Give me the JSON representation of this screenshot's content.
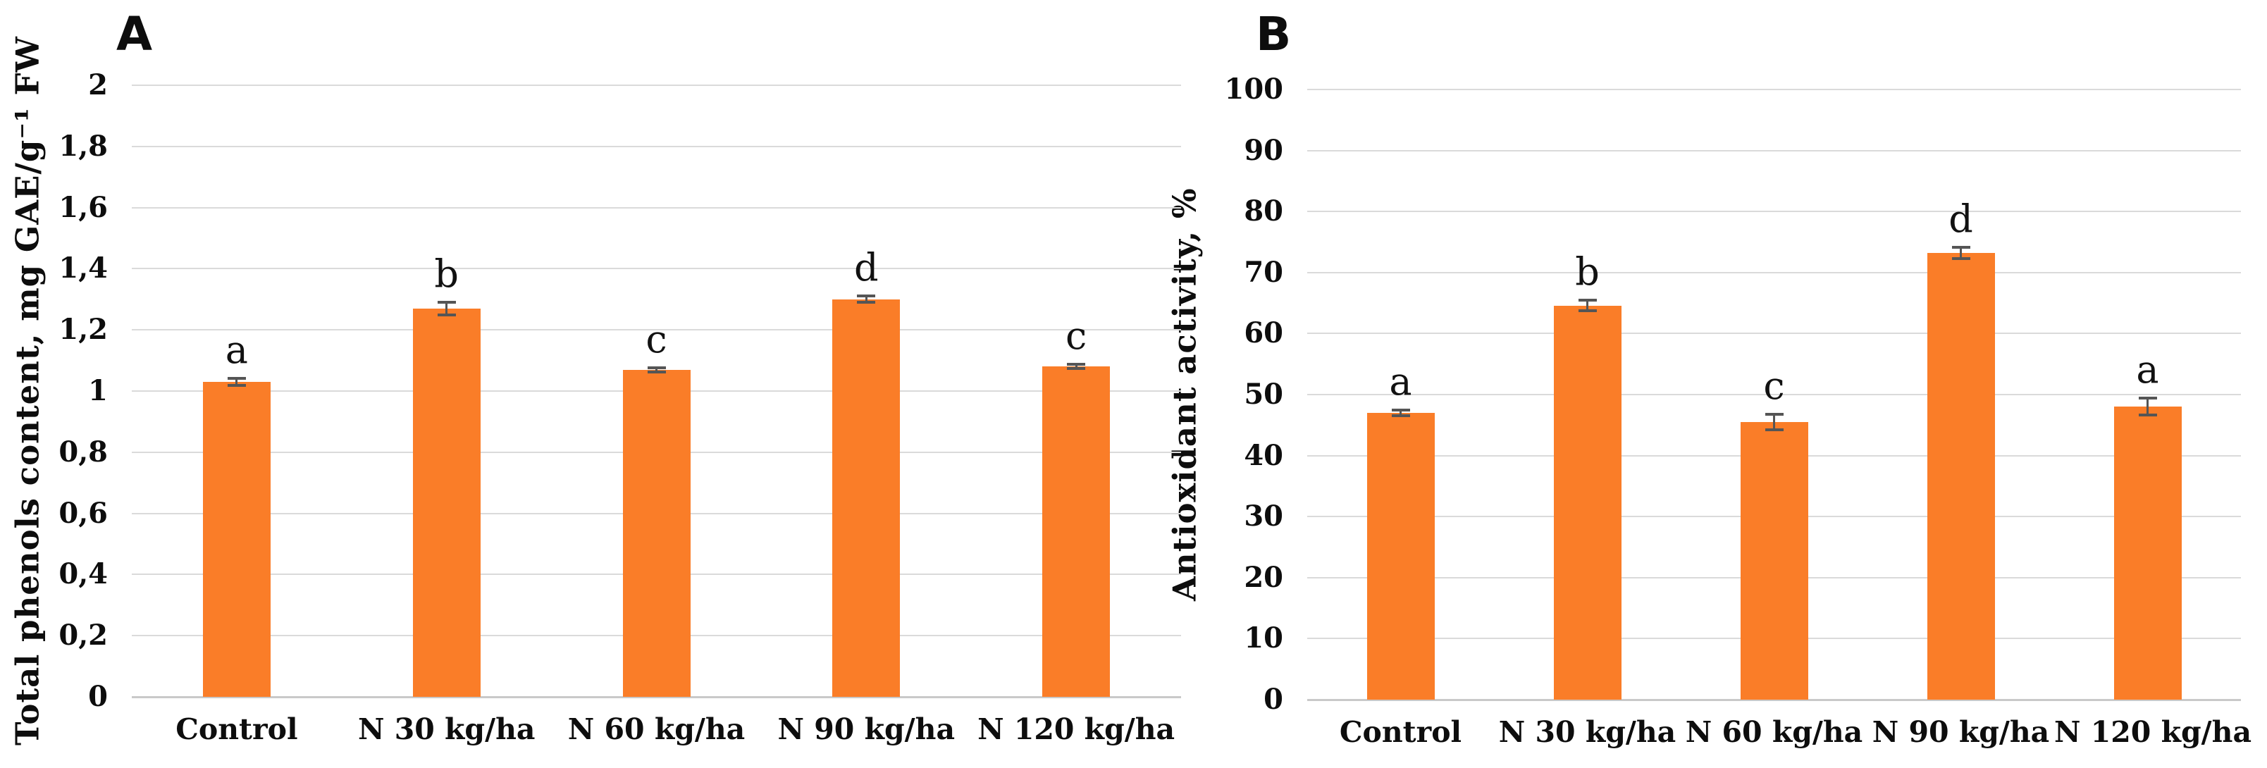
{
  "chart_data": [
    {
      "type": "bar",
      "panel": "A",
      "ylabel": "Total phenols content, mg GAE/g⁻¹ FW",
      "xlabel": "",
      "categories": [
        "Control",
        "N 30 kg/ha",
        "N 60 kg/ha",
        "N 90 kg/ha",
        "N 120 kg/ha"
      ],
      "values": [
        1.03,
        1.27,
        1.07,
        1.3,
        1.08
      ],
      "errors": [
        0.012,
        0.02,
        0.007,
        0.01,
        0.007
      ],
      "sig_letters": [
        "a",
        "b",
        "c",
        "d",
        "c"
      ],
      "ylim": [
        0,
        2
      ],
      "ytick_labels": [
        "0",
        "0,2",
        "0,4",
        "0,6",
        "0,8",
        "1",
        "1,2",
        "1,4",
        "1,6",
        "1,8",
        "2"
      ],
      "grid": true,
      "legend": "none",
      "bar_color": "#FA7D28",
      "error_color": "#555555",
      "gridline_color": "#DADADA"
    },
    {
      "type": "bar",
      "panel": "B",
      "ylabel": "Antioxidant activity, %",
      "xlabel": "",
      "categories": [
        "Control",
        "N 30 kg/ha",
        "N 60 kg/ha",
        "N 90 kg/ha",
        "N 120 kg/ha"
      ],
      "values": [
        47,
        64.6,
        45.5,
        73.2,
        48
      ],
      "errors": [
        0.5,
        0.9,
        1.3,
        0.9,
        1.4
      ],
      "sig_letters": [
        "a",
        "b",
        "c",
        "d",
        "a"
      ],
      "ylim": [
        0,
        100
      ],
      "ytick_labels": [
        "0",
        "10",
        "20",
        "30",
        "40",
        "50",
        "60",
        "70",
        "80",
        "90",
        "100"
      ],
      "grid": true,
      "legend": "none",
      "bar_color": "#FA7D28",
      "error_color": "#555555",
      "gridline_color": "#DADADA"
    }
  ]
}
